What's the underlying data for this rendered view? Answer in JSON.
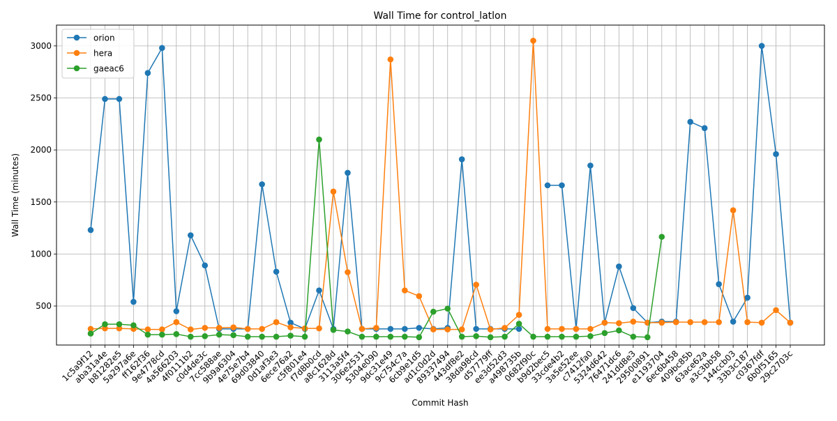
{
  "chart_data": {
    "type": "line",
    "title": "Wall Time for control_latlon",
    "xlabel": "Commit Hash",
    "ylabel": "Wall Time (minutes)",
    "ylim": [
      125,
      3200
    ],
    "yticks": [
      500,
      1000,
      1500,
      2000,
      2500,
      3000
    ],
    "grid": true,
    "legend_position": "top-left",
    "categories": [
      "1c5a9f12",
      "aba31a4e",
      "b81282e5",
      "5a297a6e",
      "ff162f36",
      "9e4778cd",
      "4a566203",
      "4f0111b2",
      "c0d4de3c",
      "7cc588ae",
      "9b9a6304",
      "4e75e7b4",
      "69d03840",
      "0d1af3e3",
      "6ece76a2",
      "c5f801e4",
      "f7d8b0cd",
      "a8c1628d",
      "3113a5f4",
      "306e2531",
      "5304e090",
      "9dc31e49",
      "9c754c7a",
      "6cb9e1d5",
      "ad1c0d2d",
      "89337494",
      "443df8e2",
      "38da98cd",
      "d57779ff",
      "ee3d52d3",
      "a498735b",
      "0682f90c",
      "b9d2bec5",
      "33cde4b2",
      "3a5e52ee",
      "c7412fa0",
      "5324d642",
      "76471dc6",
      "241dd8e3",
      "29500891",
      "e1193704",
      "6ec6b458",
      "409bc85b",
      "63ace62a",
      "a3c3bb58",
      "144ccb03",
      "33b3c187",
      "c0367fdf",
      "6b0f5165",
      "29c2703c"
    ],
    "series": [
      {
        "name": "orion",
        "color": "#1f77b4",
        "values": [
          1230,
          2490,
          2490,
          540,
          2740,
          2980,
          450,
          1180,
          890,
          280,
          280,
          280,
          1670,
          830,
          340,
          280,
          650,
          280,
          1780,
          280,
          280,
          280,
          280,
          290,
          280,
          290,
          1910,
          280,
          280,
          280,
          280,
          null,
          1660,
          1660,
          280,
          1850,
          340,
          880,
          480,
          340,
          350,
          350,
          2270,
          2210,
          710,
          350,
          580,
          3000,
          1960,
          340
        ]
      },
      {
        "name": "hera",
        "color": "#ff7f0e",
        "values": [
          280,
          285,
          285,
          280,
          275,
          275,
          345,
          275,
          290,
          290,
          295,
          280,
          280,
          345,
          295,
          285,
          285,
          1600,
          825,
          280,
          290,
          2870,
          650,
          595,
          275,
          275,
          275,
          705,
          275,
          290,
          415,
          3050,
          280,
          280,
          280,
          280,
          340,
          335,
          350,
          340,
          340,
          345,
          345,
          345,
          345,
          1420,
          345,
          340,
          460,
          340
        ]
      },
      {
        "name": "gaeac6",
        "color": "#2ca02c",
        "values": [
          235,
          325,
          325,
          315,
          225,
          225,
          230,
          205,
          210,
          225,
          220,
          205,
          205,
          205,
          215,
          205,
          2100,
          270,
          255,
          205,
          205,
          205,
          205,
          200,
          445,
          475,
          205,
          210,
          200,
          205,
          330,
          205,
          205,
          205,
          205,
          210,
          240,
          265,
          205,
          200,
          1165,
          null,
          null,
          null,
          null,
          null,
          null,
          null,
          null,
          null
        ]
      }
    ]
  }
}
